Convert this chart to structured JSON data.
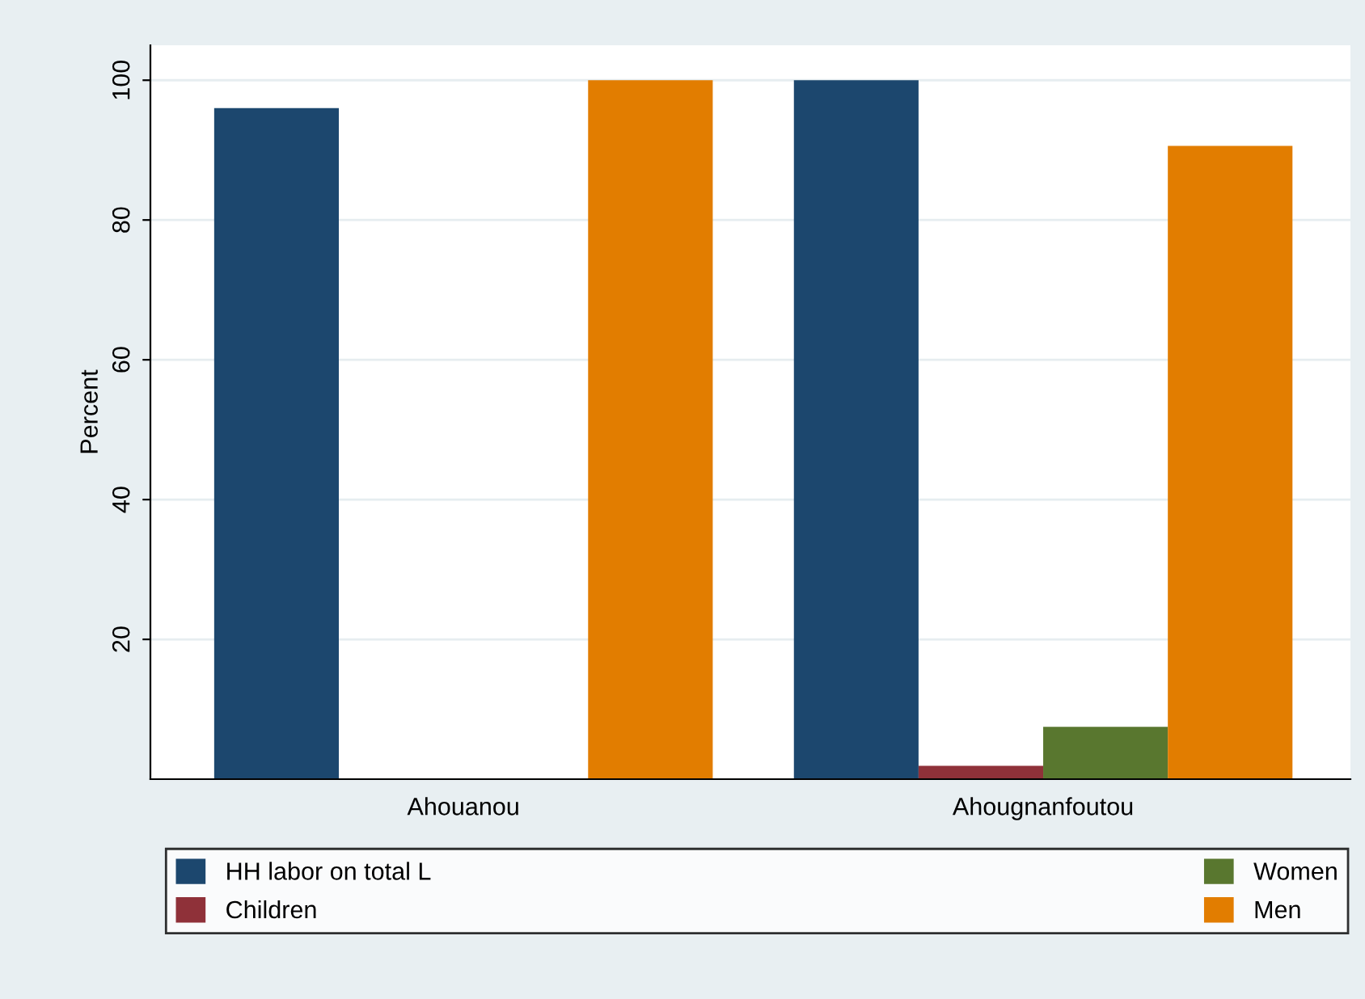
{
  "chart_data": {
    "type": "bar",
    "ylabel": "Percent",
    "categories": [
      "Ahouanou",
      "Ahougnanfoutou"
    ],
    "series": [
      {
        "name": "HH labor on total L",
        "color": "#1c476e",
        "values": [
          96,
          100
        ]
      },
      {
        "name": "Children",
        "color": "#8f3139",
        "values": [
          0,
          1.9
        ]
      },
      {
        "name": "Women",
        "color": "#59772f",
        "values": [
          0,
          7.5
        ]
      },
      {
        "name": "Men",
        "color": "#e27d00",
        "values": [
          100,
          90.6
        ]
      }
    ],
    "ylim": [
      0,
      105
    ],
    "yticks": [
      20,
      40,
      60,
      80,
      100
    ],
    "grid": "y",
    "legend": "bottom"
  }
}
